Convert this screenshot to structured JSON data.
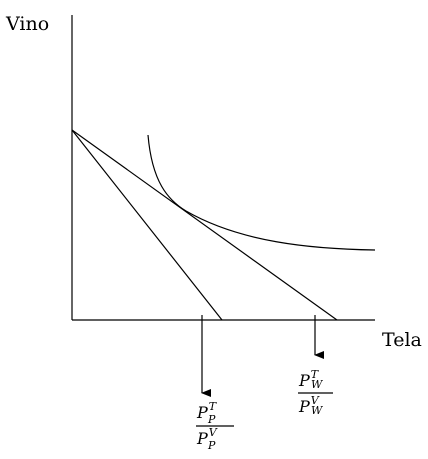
{
  "axes": {
    "y_label": "Vino",
    "x_label": "Tela"
  },
  "labels": [
    {
      "numerator": {
        "base": "P",
        "sup": "T",
        "sub": "P"
      },
      "denominator": {
        "base": "P",
        "sup": "V",
        "sub": "P"
      }
    },
    {
      "numerator": {
        "base": "P",
        "sup": "T",
        "sub": "W"
      },
      "denominator": {
        "base": "P",
        "sup": "V",
        "sub": "W"
      }
    }
  ]
}
